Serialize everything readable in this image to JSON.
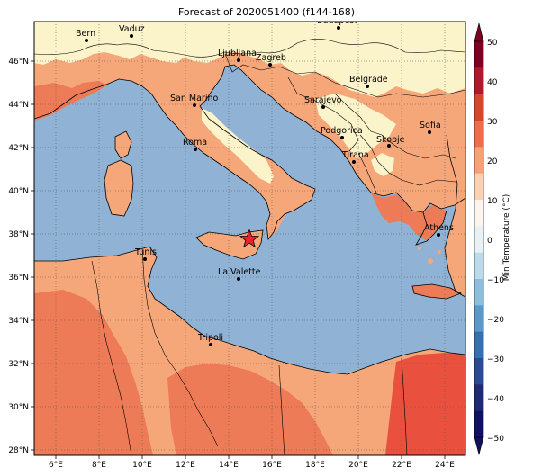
{
  "title": "Forecast of 2020051400 (f144-168)",
  "colorbar": {
    "label": "Min Temperature (°C)",
    "ticks": [
      "50",
      "40",
      "30",
      "20",
      "10",
      "0",
      "−10",
      "−20",
      "−30",
      "−40",
      "−50"
    ],
    "colors": [
      "#7f0023",
      "#b2182b",
      "#d6452f",
      "#ef6c4c",
      "#f8a07a",
      "#fcd0b2",
      "#fdf4ee",
      "#e8f2f6",
      "#bcdbea",
      "#8ebedb",
      "#5f97c5",
      "#3a6fad",
      "#2a4a92",
      "#1f2a70",
      "#101060"
    ]
  },
  "axes": {
    "lon_ticks": [
      "6°E",
      "8°E",
      "10°E",
      "12°E",
      "14°E",
      "16°E",
      "18°E",
      "20°E",
      "22°E",
      "24°E"
    ],
    "lat_ticks": [
      "46°N",
      "44°N",
      "42°N",
      "40°N",
      "38°N",
      "36°N",
      "34°N",
      "32°N",
      "30°N",
      "28°N"
    ],
    "lon_range": [
      5,
      25
    ],
    "lat_range": [
      27.8,
      47.9
    ]
  },
  "fill_colors": {
    "sea": "#8fb2d5",
    "cool_land": "#fbf3c9",
    "mild": "#f6a77a",
    "warm": "#ee7b57",
    "hot": "#e9503e"
  },
  "cities": [
    {
      "name": "Bern"
    },
    {
      "name": "Vaduz"
    },
    {
      "name": "Budapest"
    },
    {
      "name": "Ljubljana"
    },
    {
      "name": "Zagreb"
    },
    {
      "name": "Belgrade"
    },
    {
      "name": "San Marino"
    },
    {
      "name": "Sarajevo"
    },
    {
      "name": "Podgorica"
    },
    {
      "name": "Sofia"
    },
    {
      "name": "Skopje"
    },
    {
      "name": "Roma"
    },
    {
      "name": "Tirana"
    },
    {
      "name": "Athens"
    },
    {
      "name": "Tunis"
    },
    {
      "name": "La Valette"
    },
    {
      "name": "Tripoli"
    }
  ],
  "marker": {
    "type": "red-star",
    "lon": 14.9,
    "lat": 37.8
  }
}
